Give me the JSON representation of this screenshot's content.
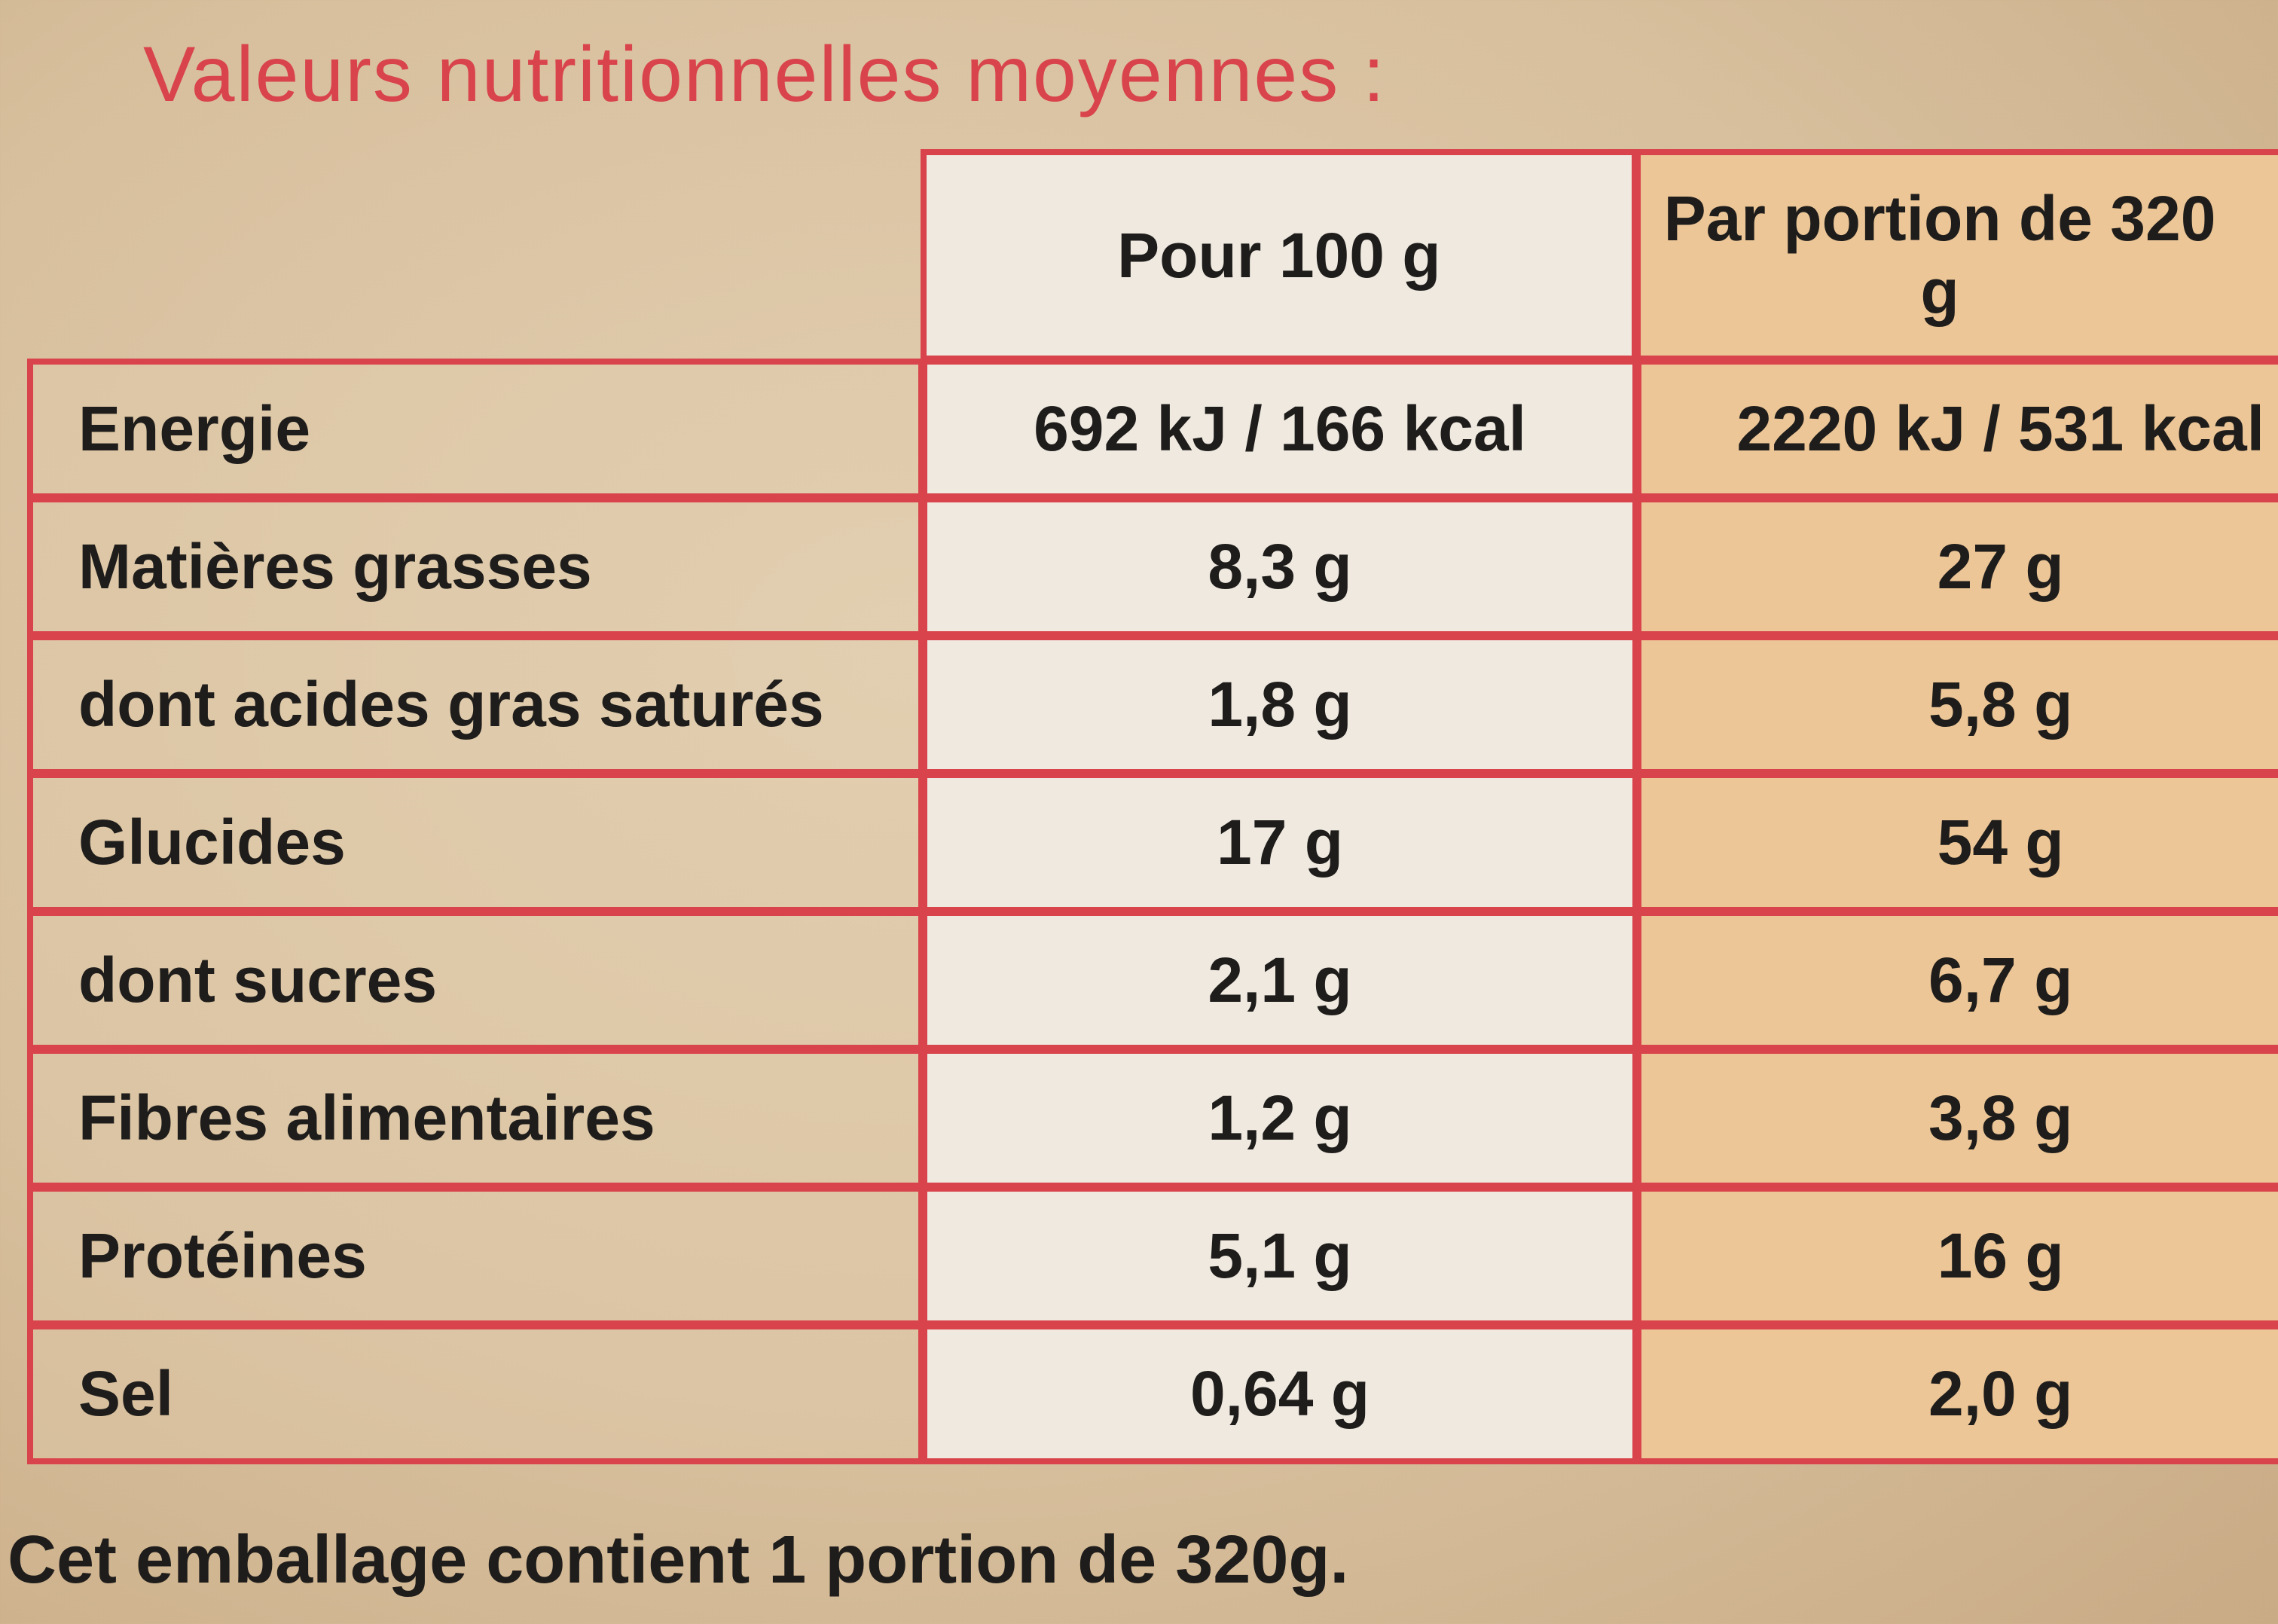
{
  "title": "Valeurs nutritionnelles moyennes :",
  "table": {
    "header": [
      "Pour 100 g",
      "Par portion de 320 g"
    ],
    "rows": [
      [
        "Energie",
        "692 kJ / 166 kcal",
        "2220 kJ / 531 kcal"
      ],
      [
        "Matières grasses",
        "8,3 g",
        "27 g"
      ],
      [
        "dont acides gras saturés",
        "1,8 g",
        "5,8 g"
      ],
      [
        "Glucides",
        "17 g",
        "54 g"
      ],
      [
        "dont sucres",
        "2,1 g",
        "6,7 g"
      ],
      [
        "Fibres alimentaires",
        "1,2 g",
        "3,8 g"
      ],
      [
        "Protéines",
        "5,1 g",
        "16 g"
      ],
      [
        "Sel",
        "0,64 g",
        "2,0 g"
      ]
    ]
  },
  "footer": "Cet emballage contient 1 portion de 320g."
}
